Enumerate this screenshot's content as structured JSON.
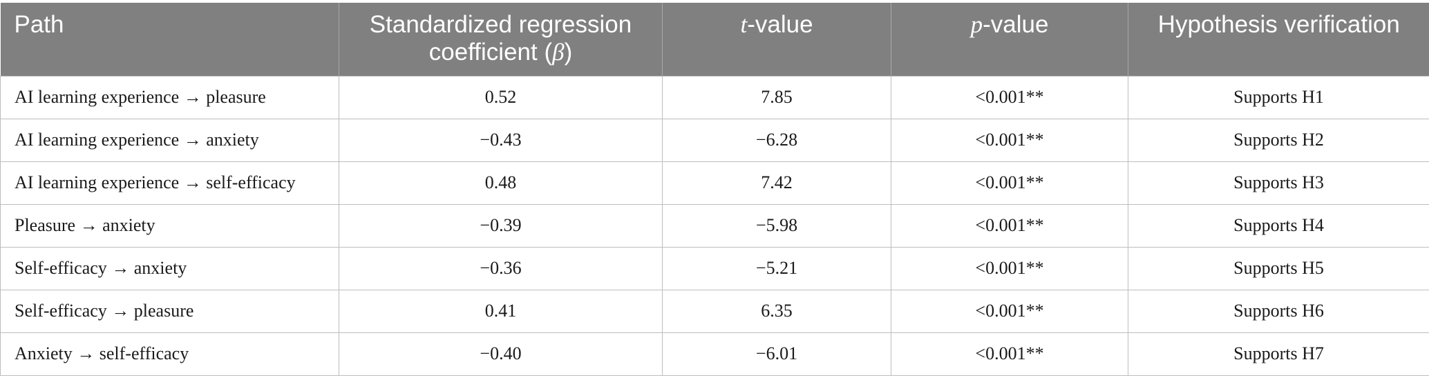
{
  "table": {
    "headers": {
      "path": "Path",
      "beta_line1": "Standardized regression",
      "beta_line2_prefix": "coefficient (",
      "beta_symbol": "β",
      "beta_line2_suffix": ")",
      "t_symbol": "t",
      "t_suffix": "-value",
      "p_symbol": "p",
      "p_suffix": "-value",
      "hypothesis": "Hypothesis verification"
    },
    "rows": [
      {
        "path": "AI learning experience → pleasure",
        "beta": "0.52",
        "t": "7.85",
        "p": "<0.001**",
        "hypothesis": "Supports H1"
      },
      {
        "path": "AI learning experience → anxiety",
        "beta": "−0.43",
        "t": "−6.28",
        "p": "<0.001**",
        "hypothesis": "Supports H2"
      },
      {
        "path": "AI learning experience → self-efficacy",
        "beta": "0.48",
        "t": "7.42",
        "p": "<0.001**",
        "hypothesis": "Supports H3"
      },
      {
        "path": "Pleasure → anxiety",
        "beta": "−0.39",
        "t": "−5.98",
        "p": "<0.001**",
        "hypothesis": "Supports H4"
      },
      {
        "path": "Self-efficacy → anxiety",
        "beta": "−0.36",
        "t": "−5.21",
        "p": "<0.001**",
        "hypothesis": "Supports H5"
      },
      {
        "path": "Self-efficacy → pleasure",
        "beta": "0.41",
        "t": "6.35",
        "p": "<0.001**",
        "hypothesis": "Supports H6"
      },
      {
        "path": "Anxiety → self-efficacy",
        "beta": "−0.40",
        "t": "−6.01",
        "p": "<0.001**",
        "hypothesis": "Supports H7"
      }
    ]
  }
}
